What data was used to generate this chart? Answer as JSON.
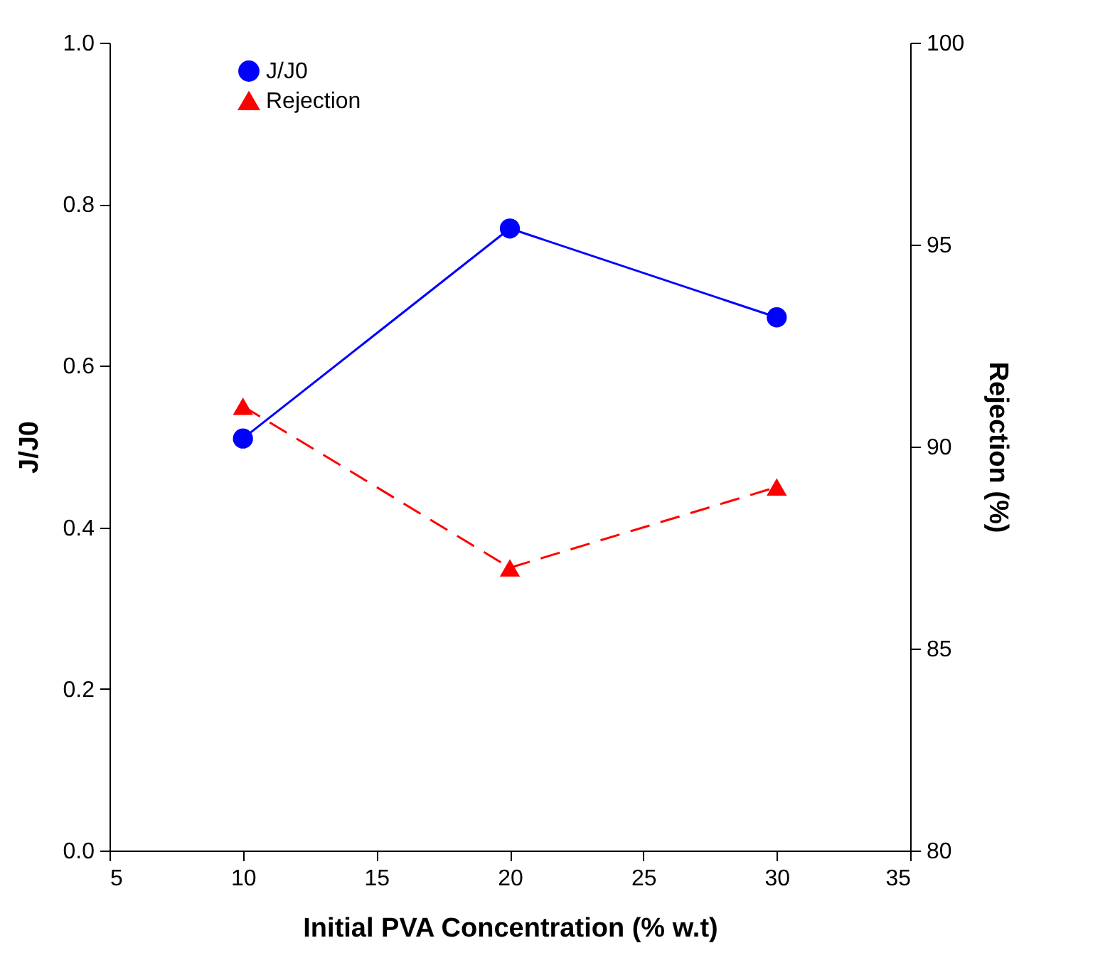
{
  "chart_data": {
    "type": "line",
    "xlabel": "Initial PVA Concentration (% w.t)",
    "ylabel": "J/J0",
    "y2label": "Rejection (%)",
    "x": [
      10,
      20,
      30
    ],
    "series": [
      {
        "name": "J/J0",
        "color": "#0000ff",
        "values": [
          0.51,
          0.77,
          0.66
        ],
        "marker": "circle",
        "line_style": "solid"
      },
      {
        "name": "Rejection",
        "color": "#ff0000",
        "values": [
          91,
          87,
          89
        ],
        "marker": "triangle",
        "line_style": "dashed",
        "axis": "y2"
      }
    ],
    "xlim": [
      5,
      35
    ],
    "xticks": [
      5,
      10,
      15,
      20,
      25,
      30,
      35
    ],
    "ylim": [
      0,
      1
    ],
    "yticks": [
      {
        "value": 0,
        "label": "0.0"
      },
      0.2,
      0.4,
      0.6,
      0.8,
      {
        "value": 1,
        "label": "1.0"
      }
    ],
    "y2lim": [
      80,
      100
    ],
    "y2ticks": [
      80,
      85,
      90,
      95,
      100
    ],
    "legend": "top left",
    "grid": false
  }
}
